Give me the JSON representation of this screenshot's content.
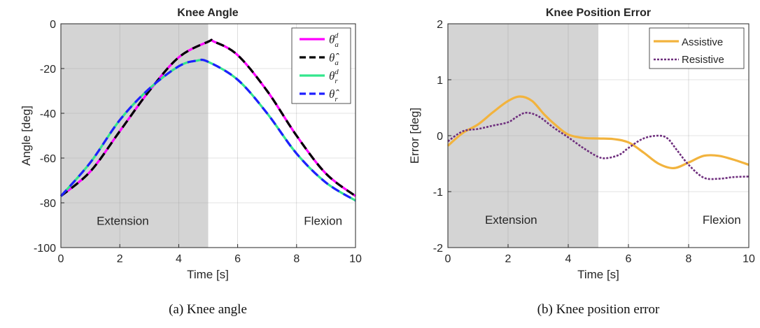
{
  "chart_data": [
    {
      "type": "line",
      "title": "Knee Angle",
      "xlabel": "Time [s]",
      "ylabel": "Angle [deg]",
      "xlim": [
        0,
        10
      ],
      "ylim": [
        -100,
        0
      ],
      "xticks": [
        "0",
        "2",
        "4",
        "6",
        "8",
        "10"
      ],
      "yticks": [
        "0",
        "-20",
        "-40",
        "-60",
        "-80",
        "-100"
      ],
      "grid": true,
      "legend_position": "top-right",
      "shaded_region": {
        "x": [
          0,
          5
        ],
        "color": "#d4d4d4"
      },
      "phase_labels": [
        {
          "text": "Extension",
          "x": 2.1,
          "y": -88
        },
        {
          "text": "Flexion",
          "x": 8.9,
          "y": -88
        }
      ],
      "series": [
        {
          "name": "θ_a^d",
          "color": "#ff00ff",
          "style": "solid",
          "x": [
            0,
            1,
            2,
            3,
            4,
            5,
            5.2,
            6,
            7,
            8,
            9,
            10
          ],
          "y": [
            -77,
            -66,
            -48,
            -30,
            -15,
            -8,
            -8,
            -14,
            -30,
            -50,
            -67,
            -77
          ]
        },
        {
          "name": "θ̂_a",
          "color": "#000000",
          "style": "dashed",
          "x": [
            0,
            1,
            2,
            3,
            4,
            5,
            5.2,
            6,
            7,
            8,
            9,
            10
          ],
          "y": [
            -77,
            -66,
            -48,
            -30,
            -15,
            -8,
            -8,
            -14,
            -30,
            -50,
            -67,
            -77
          ]
        },
        {
          "name": "θ_r^d",
          "color": "#33e68c",
          "style": "solid",
          "x": [
            0,
            1,
            2,
            3,
            4,
            4.6,
            5,
            6,
            7,
            8,
            9,
            10
          ],
          "y": [
            -77,
            -62,
            -43,
            -29,
            -19,
            -16.5,
            -17,
            -25,
            -40,
            -58,
            -71,
            -79
          ]
        },
        {
          "name": "θ̂_r",
          "color": "#1f1fff",
          "style": "dashed",
          "x": [
            0,
            1,
            2,
            3,
            4,
            4.6,
            5,
            6,
            7,
            8,
            9,
            10
          ],
          "y": [
            -77,
            -62,
            -43,
            -29,
            -19,
            -16.5,
            -17,
            -25,
            -40,
            -58,
            -71,
            -79
          ]
        }
      ]
    },
    {
      "type": "line",
      "title": "Knee Position Error",
      "xlabel": "Time [s]",
      "ylabel": "Error [deg]",
      "xlim": [
        0,
        10
      ],
      "ylim": [
        -2,
        2
      ],
      "xticks": [
        "0",
        "2",
        "4",
        "6",
        "8",
        "10"
      ],
      "yticks": [
        "2",
        "1",
        "0",
        "-1",
        "-2"
      ],
      "grid": true,
      "legend_position": "top-right",
      "shaded_region": {
        "x": [
          0,
          5
        ],
        "color": "#d4d4d4"
      },
      "phase_labels": [
        {
          "text": "Extension",
          "x": 2.1,
          "y": -1.5
        },
        {
          "text": "Flexion",
          "x": 9.1,
          "y": -1.5
        }
      ],
      "series": [
        {
          "name": "Assistive",
          "color": "#f2b33d",
          "style": "solid",
          "x": [
            0,
            0.5,
            1,
            1.5,
            2,
            2.4,
            2.8,
            3.2,
            3.6,
            4,
            4.5,
            5,
            5.5,
            6,
            6.5,
            7,
            7.5,
            8,
            8.5,
            9,
            9.5,
            10
          ],
          "y": [
            -0.18,
            0.05,
            0.2,
            0.42,
            0.62,
            0.7,
            0.62,
            0.38,
            0.18,
            0.02,
            -0.04,
            -0.05,
            -0.06,
            -0.12,
            -0.3,
            -0.5,
            -0.58,
            -0.48,
            -0.36,
            -0.36,
            -0.43,
            -0.52
          ]
        },
        {
          "name": "Resistive",
          "color": "#6e2e7d",
          "style": "dotted",
          "x": [
            0,
            0.5,
            1,
            1.5,
            2,
            2.3,
            2.6,
            3,
            3.5,
            4,
            4.5,
            5,
            5.3,
            5.7,
            6,
            6.5,
            7,
            7.3,
            7.6,
            8,
            8.5,
            9,
            9.5,
            10
          ],
          "y": [
            -0.1,
            0.08,
            0.12,
            0.18,
            0.24,
            0.34,
            0.41,
            0.35,
            0.15,
            -0.03,
            -0.22,
            -0.38,
            -0.4,
            -0.34,
            -0.22,
            -0.05,
            0.0,
            -0.05,
            -0.25,
            -0.52,
            -0.75,
            -0.77,
            -0.74,
            -0.73
          ]
        }
      ]
    }
  ],
  "captions": [
    "(a)  Knee angle",
    "(b)  Knee position error"
  ]
}
